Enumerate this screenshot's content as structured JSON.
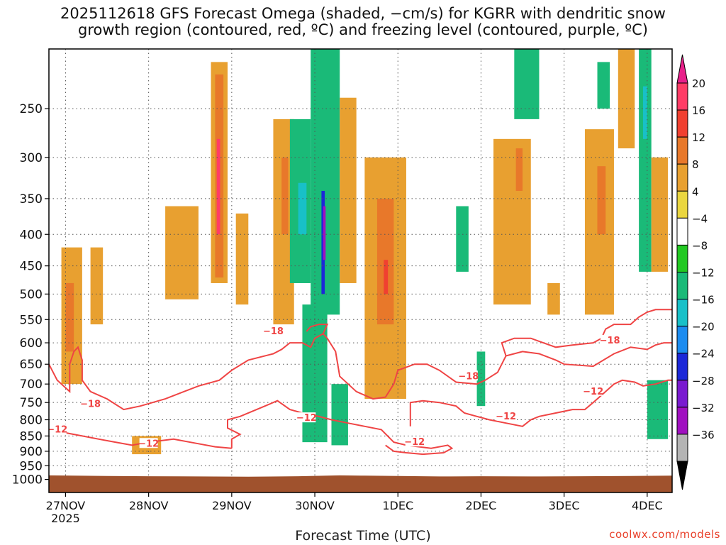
{
  "chart_data": {
    "type": "heatmap",
    "title": "2025112618 GFS Forecast Omega (shaded, −cm/s) for KGRR with dendritic snow",
    "subtitle": "growth region (contoured, red, ºC) and freezing level (contoured, purple, ºC)",
    "xlabel": "Forecast Time (UTC)",
    "ylabel": "",
    "credit": "coolwx.com/models",
    "yaxis": {
      "scale": "pressure-inverted",
      "range": [
        1050,
        200
      ],
      "ticks": [
        250,
        300,
        350,
        400,
        450,
        500,
        550,
        600,
        650,
        700,
        750,
        800,
        850,
        900,
        950,
        1000
      ]
    },
    "xaxis": {
      "range_days": [
        -0.2,
        7.3
      ],
      "ticks": [
        {
          "label": "27NOV",
          "sub": "2025",
          "day": 0
        },
        {
          "label": "28NOV",
          "day": 1
        },
        {
          "label": "29NOV",
          "day": 2
        },
        {
          "label": "30NOV",
          "day": 3
        },
        {
          "label": "1DEC",
          "day": 4
        },
        {
          "label": "2DEC",
          "day": 5
        },
        {
          "label": "3DEC",
          "day": 6
        },
        {
          "label": "4DEC",
          "day": 7
        }
      ]
    },
    "grid": true,
    "legend": {
      "position": "right",
      "labels": [
        "20",
        "16",
        "12",
        "8",
        "4",
        "−4",
        "−8",
        "−12",
        "−16",
        "−20",
        "−24",
        "−28",
        "−32",
        "−36"
      ],
      "colors": [
        "#ff3c66",
        "#f04030",
        "#e8782a",
        "#e8a030",
        "#ead640",
        "#ffffff",
        "#22c822",
        "#1aba78",
        "#18c0c8",
        "#1c8cf0",
        "#1c28d8",
        "#7a1ad0",
        "#a010c0",
        "#b4b4b4"
      ],
      "top_color": "#e8208a",
      "bottom_color": "#000000"
    },
    "ground_color": "#a0522d",
    "contour_color": "#ef4444",
    "contour_labels": [
      {
        "text": "−18",
        "day": 0.3,
        "p": 755
      },
      {
        "text": "−12",
        "day": -0.1,
        "p": 830
      },
      {
        "text": "−12",
        "day": 1.0,
        "p": 875
      },
      {
        "text": "−18",
        "day": 2.5,
        "p": 575
      },
      {
        "text": "−12",
        "day": 2.9,
        "p": 795
      },
      {
        "text": "−12",
        "day": 4.2,
        "p": 870
      },
      {
        "text": "−18",
        "day": 4.85,
        "p": 680
      },
      {
        "text": "−12",
        "day": 5.3,
        "p": 790
      },
      {
        "text": "−12",
        "day": 6.35,
        "p": 720
      },
      {
        "text": "−18",
        "day": 6.55,
        "p": 595
      }
    ],
    "shaded_regions": [
      {
        "value": 4,
        "d0": -0.05,
        "d1": 0.2,
        "p0": 420,
        "p1": 700
      },
      {
        "value": 8,
        "d0": 0.0,
        "d1": 0.1,
        "p0": 480,
        "p1": 620
      },
      {
        "value": 4,
        "d0": 0.3,
        "d1": 0.45,
        "p0": 420,
        "p1": 560
      },
      {
        "value": 4,
        "d0": 0.8,
        "d1": 1.15,
        "p0": 850,
        "p1": 910
      },
      {
        "value": 4,
        "d0": 1.2,
        "d1": 1.6,
        "p0": 360,
        "p1": 510
      },
      {
        "value": 4,
        "d0": 1.75,
        "d1": 1.95,
        "p0": 210,
        "p1": 480
      },
      {
        "value": 8,
        "d0": 1.8,
        "d1": 1.9,
        "p0": 220,
        "p1": 470
      },
      {
        "value": 16,
        "d0": 1.82,
        "d1": 1.86,
        "p0": 280,
        "p1": 400
      },
      {
        "value": 4,
        "d0": 2.05,
        "d1": 2.2,
        "p0": 370,
        "p1": 520
      },
      {
        "value": 4,
        "d0": 2.5,
        "d1": 2.75,
        "p0": 260,
        "p1": 560
      },
      {
        "value": 8,
        "d0": 2.6,
        "d1": 2.68,
        "p0": 300,
        "p1": 400
      },
      {
        "value": -8,
        "d0": 2.7,
        "d1": 2.95,
        "p0": 260,
        "p1": 480
      },
      {
        "value": -12,
        "d0": 2.8,
        "d1": 2.9,
        "p0": 330,
        "p1": 400
      },
      {
        "value": -8,
        "d0": 2.85,
        "d1": 3.15,
        "p0": 520,
        "p1": 870
      },
      {
        "value": -8,
        "d0": 2.95,
        "d1": 3.3,
        "p0": 200,
        "p1": 540
      },
      {
        "value": -20,
        "d0": 3.08,
        "d1": 3.12,
        "p0": 340,
        "p1": 500
      },
      {
        "value": -28,
        "d0": 3.1,
        "d1": 3.13,
        "p0": 360,
        "p1": 440
      },
      {
        "value": -8,
        "d0": 3.2,
        "d1": 3.4,
        "p0": 700,
        "p1": 880
      },
      {
        "value": 4,
        "d0": 3.3,
        "d1": 3.5,
        "p0": 240,
        "p1": 480
      },
      {
        "value": 4,
        "d0": 3.6,
        "d1": 4.1,
        "p0": 300,
        "p1": 740
      },
      {
        "value": 8,
        "d0": 3.75,
        "d1": 3.95,
        "p0": 350,
        "p1": 560
      },
      {
        "value": 12,
        "d0": 3.83,
        "d1": 3.88,
        "p0": 440,
        "p1": 500
      },
      {
        "value": -8,
        "d0": 4.7,
        "d1": 4.85,
        "p0": 360,
        "p1": 460
      },
      {
        "value": -8,
        "d0": 4.95,
        "d1": 5.05,
        "p0": 620,
        "p1": 760
      },
      {
        "value": 4,
        "d0": 5.15,
        "d1": 5.6,
        "p0": 280,
        "p1": 520
      },
      {
        "value": 8,
        "d0": 5.42,
        "d1": 5.5,
        "p0": 290,
        "p1": 340
      },
      {
        "value": -8,
        "d0": 5.4,
        "d1": 5.7,
        "p0": 200,
        "p1": 260
      },
      {
        "value": 4,
        "d0": 5.8,
        "d1": 5.95,
        "p0": 480,
        "p1": 540
      },
      {
        "value": 4,
        "d0": 6.25,
        "d1": 6.6,
        "p0": 270,
        "p1": 540
      },
      {
        "value": 8,
        "d0": 6.4,
        "d1": 6.5,
        "p0": 310,
        "p1": 400
      },
      {
        "value": -8,
        "d0": 6.4,
        "d1": 6.55,
        "p0": 210,
        "p1": 250
      },
      {
        "value": 4,
        "d0": 6.65,
        "d1": 6.85,
        "p0": 200,
        "p1": 290
      },
      {
        "value": -8,
        "d0": 6.9,
        "d1": 7.05,
        "p0": 200,
        "p1": 460
      },
      {
        "value": -12,
        "d0": 6.95,
        "d1": 7.0,
        "p0": 230,
        "p1": 280
      },
      {
        "value": 4,
        "d0": 7.05,
        "d1": 7.25,
        "p0": 300,
        "p1": 460
      },
      {
        "value": -8,
        "d0": 7.0,
        "d1": 7.25,
        "p0": 690,
        "p1": 860
      }
    ]
  }
}
